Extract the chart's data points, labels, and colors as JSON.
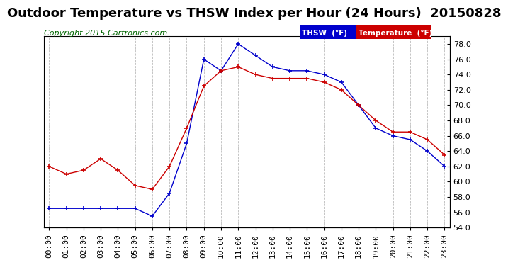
{
  "title": "Outdoor Temperature vs THSW Index per Hour (24 Hours)  20150828",
  "copyright": "Copyright 2015 Cartronics.com",
  "ylim": [
    54.0,
    79.0
  ],
  "yticks": [
    54.0,
    56.0,
    58.0,
    60.0,
    62.0,
    64.0,
    66.0,
    68.0,
    70.0,
    72.0,
    74.0,
    76.0,
    78.0
  ],
  "hours": [
    "00:00",
    "01:00",
    "02:00",
    "03:00",
    "04:00",
    "05:00",
    "06:00",
    "07:00",
    "08:00",
    "09:00",
    "10:00",
    "11:00",
    "12:00",
    "13:00",
    "14:00",
    "15:00",
    "16:00",
    "17:00",
    "18:00",
    "19:00",
    "20:00",
    "21:00",
    "22:00",
    "23:00"
  ],
  "temperature": [
    62.0,
    61.0,
    61.5,
    63.0,
    61.5,
    59.5,
    59.0,
    62.0,
    67.0,
    72.5,
    74.5,
    75.0,
    74.0,
    73.5,
    73.5,
    73.5,
    73.0,
    72.0,
    70.0,
    68.0,
    66.5,
    66.5,
    65.5,
    63.5
  ],
  "thsw": [
    56.5,
    56.5,
    56.5,
    56.5,
    56.5,
    56.5,
    55.5,
    58.5,
    65.0,
    76.0,
    74.5,
    78.0,
    76.5,
    75.0,
    74.5,
    74.5,
    74.0,
    73.0,
    70.0,
    67.0,
    66.0,
    65.5,
    64.0,
    62.0
  ],
  "temp_color": "#cc0000",
  "thsw_color": "#0000cc",
  "bg_color": "#ffffff",
  "grid_color": "#aaaaaa",
  "title_fontsize": 13,
  "copyright_fontsize": 8,
  "tick_fontsize": 8,
  "legend_thsw_bg": "#0000cc",
  "legend_temp_bg": "#cc0000",
  "legend_thsw_text": "THSW  (°F)",
  "legend_temp_text": "Temperature  (°F)"
}
